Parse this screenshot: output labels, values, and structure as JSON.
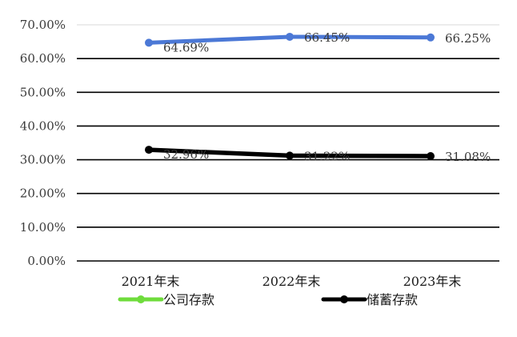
{
  "chart_data": {
    "type": "line",
    "categories": [
      "2021年末",
      "2022年末",
      "2023年末"
    ],
    "ylim": [
      0,
      70
    ],
    "yticks": [
      0,
      10,
      20,
      30,
      40,
      50,
      60,
      70
    ],
    "ytick_labels": [
      "0.00%",
      "10.00%",
      "20.00%",
      "30.00%",
      "40.00%",
      "50.00%",
      "60.00%",
      "70.00%"
    ],
    "grid": true,
    "legend_position": "bottom",
    "series": [
      {
        "name": "公司存款",
        "color": "#4b78d6",
        "legend_color": "#6fdc3c",
        "values": [
          64.69,
          66.45,
          66.25
        ],
        "labels": [
          "64.69%",
          "66.45%",
          "66.25%"
        ]
      },
      {
        "name": "储蓄存款",
        "color": "#000000",
        "legend_color": "#000000",
        "values": [
          32.96,
          31.22,
          31.08
        ],
        "labels": [
          "32.96%",
          "31.22%",
          "31.08%"
        ]
      }
    ]
  }
}
